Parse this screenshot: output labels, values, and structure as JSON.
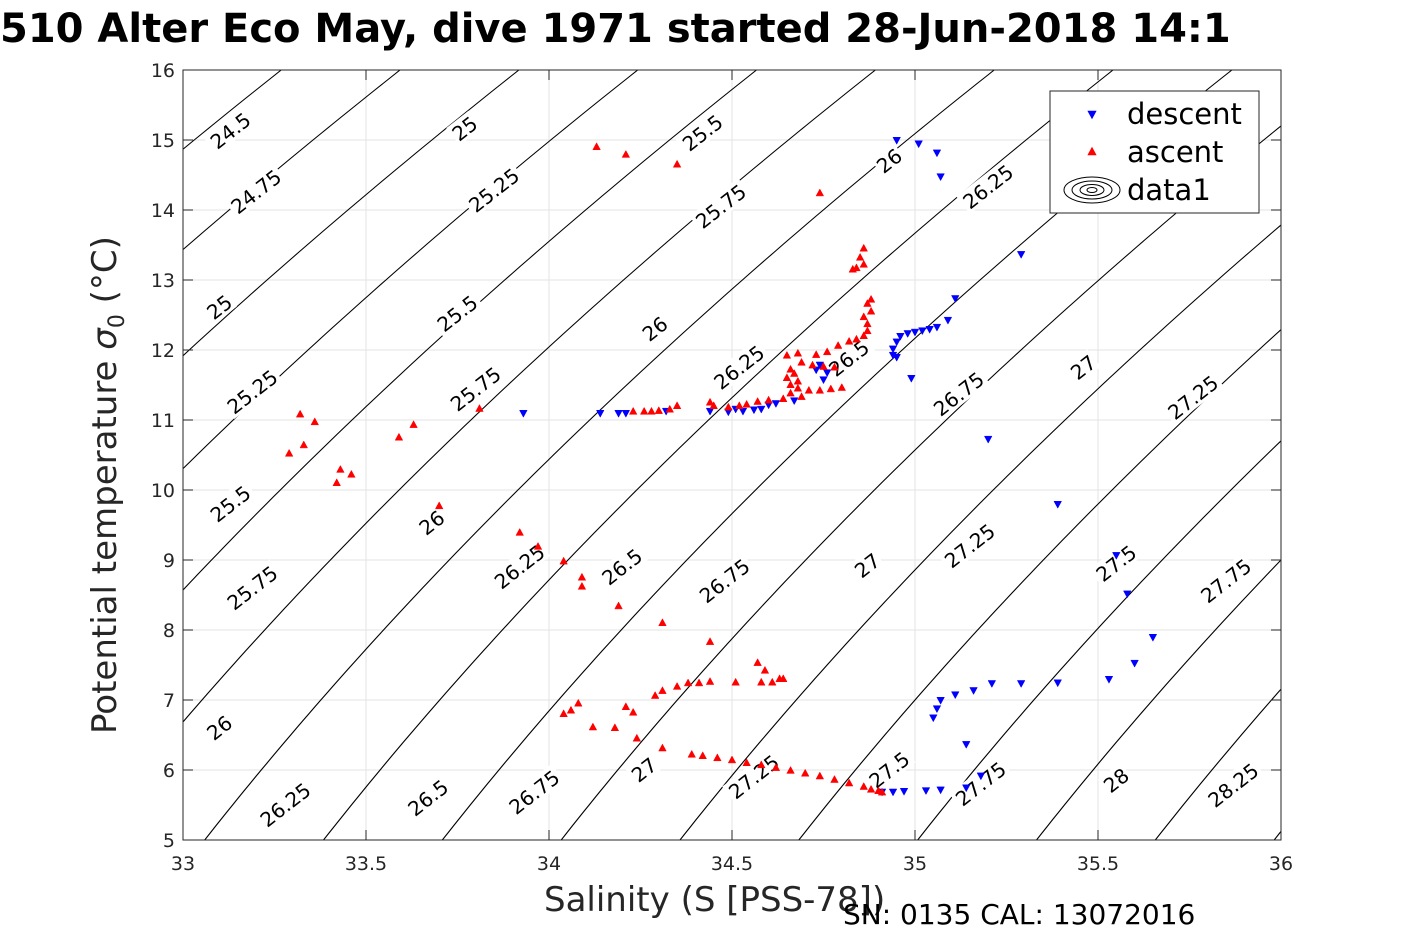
{
  "title": "510 Alter Eco May, dive 1971 started 28-Jun-2018 14:1",
  "footer": "SN: 0135  CAL: 13072016",
  "chart_data": {
    "type": "scatter",
    "xlabel": "Salinity (S [PSS-78])",
    "ylabel_text": "Potential temperature ",
    "ylabel_symbol": "σ",
    "ylabel_sub": "0",
    "ylabel_unit": " (°C)",
    "xlim": [
      33,
      36
    ],
    "ylim": [
      5,
      16
    ],
    "xticks": [
      33,
      33.5,
      34,
      34.5,
      35,
      35.5,
      36
    ],
    "xtick_labels": [
      "33",
      "33.5",
      "34",
      "34.5",
      "35",
      "35.5",
      "36"
    ],
    "yticks": [
      5,
      6,
      7,
      8,
      9,
      10,
      11,
      12,
      13,
      14,
      15,
      16
    ],
    "ytick_labels": [
      "5",
      "6",
      "7",
      "8",
      "9",
      "10",
      "11",
      "12",
      "13",
      "14",
      "15",
      "16"
    ],
    "grid": true,
    "legend_position": "top-right",
    "legend": [
      {
        "name": "descent",
        "marker": "triangle-down",
        "color": "#0000ff"
      },
      {
        "name": "ascent",
        "marker": "triangle-up",
        "color": "#ff0000"
      },
      {
        "name": "data1",
        "marker": "contour",
        "color": "#000000"
      }
    ],
    "contour_levels": [
      24.5,
      24.75,
      25,
      25.25,
      25.5,
      25.75,
      26,
      26.25,
      26.5,
      26.75,
      27,
      27.25,
      27.5,
      27.75,
      28,
      28.25
    ],
    "contour_labels": [
      {
        "text": "24.5",
        "s": 33.13,
        "t": 15.13
      },
      {
        "text": "24.75",
        "s": 33.2,
        "t": 14.26
      },
      {
        "text": "25",
        "s": 33.1,
        "t": 12.61
      },
      {
        "text": "25.25",
        "s": 33.19,
        "t": 11.4
      },
      {
        "text": "25.5",
        "s": 33.13,
        "t": 9.8
      },
      {
        "text": "25.75",
        "s": 33.19,
        "t": 8.6
      },
      {
        "text": "26",
        "s": 33.1,
        "t": 6.6
      },
      {
        "text": "26.25",
        "s": 33.28,
        "t": 5.5
      },
      {
        "text": "25",
        "s": 33.77,
        "t": 15.16
      },
      {
        "text": "25.25",
        "s": 33.85,
        "t": 14.28
      },
      {
        "text": "25.5",
        "s": 33.75,
        "t": 12.52
      },
      {
        "text": "25.75",
        "s": 33.8,
        "t": 11.44
      },
      {
        "text": "26",
        "s": 33.68,
        "t": 9.53
      },
      {
        "text": "26.25",
        "s": 33.92,
        "t": 8.9
      },
      {
        "text": "26.5",
        "s": 33.67,
        "t": 5.6
      },
      {
        "text": "26.5",
        "s": 34.2,
        "t": 8.9
      },
      {
        "text": "26.75",
        "s": 33.96,
        "t": 5.68
      },
      {
        "text": "25.5",
        "s": 34.42,
        "t": 15.1
      },
      {
        "text": "25.75",
        "s": 34.47,
        "t": 14.05
      },
      {
        "text": "26",
        "s": 34.29,
        "t": 12.3
      },
      {
        "text": "26.25",
        "s": 34.52,
        "t": 11.75
      },
      {
        "text": "26.75",
        "s": 34.48,
        "t": 8.7
      },
      {
        "text": "27",
        "s": 34.26,
        "t": 6.0
      },
      {
        "text": "27",
        "s": 34.87,
        "t": 8.92
      },
      {
        "text": "27.25",
        "s": 34.56,
        "t": 5.9
      },
      {
        "text": "26",
        "s": 34.93,
        "t": 14.7
      },
      {
        "text": "26.5",
        "s": 34.82,
        "t": 11.88
      },
      {
        "text": "26.25",
        "s": 35.2,
        "t": 14.33
      },
      {
        "text": "26.75",
        "s": 35.12,
        "t": 11.37
      },
      {
        "text": "27.25",
        "s": 35.15,
        "t": 9.2
      },
      {
        "text": "27.5",
        "s": 34.93,
        "t": 6.0
      },
      {
        "text": "27.75",
        "s": 35.18,
        "t": 5.8
      },
      {
        "text": "27",
        "s": 35.46,
        "t": 11.75
      },
      {
        "text": "27.25",
        "s": 35.76,
        "t": 11.32
      },
      {
        "text": "27.5",
        "s": 35.55,
        "t": 8.95
      },
      {
        "text": "27.75",
        "s": 35.85,
        "t": 8.7
      },
      {
        "text": "28",
        "s": 35.55,
        "t": 5.85
      },
      {
        "text": "28.25",
        "s": 35.87,
        "t": 5.78
      }
    ],
    "series": [
      {
        "name": "descent",
        "marker": "triangle-down",
        "color": "#0000ff",
        "points": [
          [
            34.95,
            15.0
          ],
          [
            35.01,
            14.95
          ],
          [
            35.06,
            14.82
          ],
          [
            35.07,
            14.48
          ],
          [
            35.29,
            13.37
          ],
          [
            35.11,
            12.74
          ],
          [
            35.09,
            12.43
          ],
          [
            35.06,
            12.33
          ],
          [
            35.04,
            12.3
          ],
          [
            35.02,
            12.28
          ],
          [
            35.0,
            12.26
          ],
          [
            34.98,
            12.24
          ],
          [
            34.96,
            12.2
          ],
          [
            34.95,
            12.12
          ],
          [
            34.94,
            12.02
          ],
          [
            34.94,
            11.93
          ],
          [
            34.95,
            11.9
          ],
          [
            34.99,
            11.6
          ],
          [
            35.2,
            10.73
          ],
          [
            35.39,
            9.8
          ],
          [
            35.55,
            9.07
          ],
          [
            35.58,
            8.52
          ],
          [
            35.65,
            7.9
          ],
          [
            35.6,
            7.53
          ],
          [
            35.53,
            7.3
          ],
          [
            35.39,
            7.25
          ],
          [
            35.29,
            7.24
          ],
          [
            35.21,
            7.24
          ],
          [
            35.16,
            7.14
          ],
          [
            35.11,
            7.08
          ],
          [
            35.07,
            7.0
          ],
          [
            35.06,
            6.88
          ],
          [
            35.05,
            6.75
          ],
          [
            35.14,
            6.37
          ],
          [
            35.18,
            5.92
          ],
          [
            35.14,
            5.75
          ],
          [
            35.07,
            5.72
          ],
          [
            35.03,
            5.71
          ],
          [
            34.97,
            5.7
          ],
          [
            34.94,
            5.69
          ],
          [
            34.91,
            5.69
          ],
          [
            34.74,
            11.79
          ],
          [
            34.73,
            11.72
          ],
          [
            34.76,
            11.68
          ],
          [
            34.75,
            11.58
          ],
          [
            33.93,
            11.1
          ],
          [
            34.14,
            11.1
          ],
          [
            34.19,
            11.1
          ],
          [
            34.21,
            11.1
          ],
          [
            34.32,
            11.13
          ],
          [
            34.44,
            11.13
          ],
          [
            34.49,
            11.12
          ],
          [
            34.51,
            11.16
          ],
          [
            34.53,
            11.13
          ],
          [
            34.56,
            11.15
          ],
          [
            34.58,
            11.16
          ],
          [
            34.6,
            11.22
          ],
          [
            34.62,
            11.24
          ],
          [
            34.67,
            11.28
          ]
        ]
      },
      {
        "name": "ascent",
        "marker": "triangle-up",
        "color": "#ff0000",
        "points": [
          [
            34.13,
            14.9
          ],
          [
            34.21,
            14.79
          ],
          [
            34.35,
            14.65
          ],
          [
            34.74,
            14.24
          ],
          [
            34.86,
            13.45
          ],
          [
            34.85,
            13.32
          ],
          [
            34.86,
            13.22
          ],
          [
            34.84,
            13.17
          ],
          [
            34.83,
            13.15
          ],
          [
            34.88,
            12.72
          ],
          [
            34.87,
            12.66
          ],
          [
            34.88,
            12.55
          ],
          [
            34.86,
            12.47
          ],
          [
            34.87,
            12.37
          ],
          [
            34.87,
            12.27
          ],
          [
            34.86,
            12.2
          ],
          [
            34.84,
            12.15
          ],
          [
            34.82,
            12.12
          ],
          [
            34.79,
            12.06
          ],
          [
            34.76,
            11.97
          ],
          [
            34.73,
            11.93
          ],
          [
            34.68,
            11.95
          ],
          [
            34.65,
            11.92
          ],
          [
            34.69,
            11.82
          ],
          [
            34.72,
            11.78
          ],
          [
            34.75,
            11.76
          ],
          [
            34.78,
            11.75
          ],
          [
            34.66,
            11.72
          ],
          [
            34.67,
            11.66
          ],
          [
            34.65,
            11.6
          ],
          [
            34.68,
            11.55
          ],
          [
            34.66,
            11.5
          ],
          [
            34.68,
            11.45
          ],
          [
            34.71,
            11.42
          ],
          [
            34.74,
            11.42
          ],
          [
            34.77,
            11.44
          ],
          [
            34.8,
            11.46
          ],
          [
            34.66,
            11.38
          ],
          [
            34.69,
            11.33
          ],
          [
            34.64,
            11.3
          ],
          [
            34.6,
            11.28
          ],
          [
            34.57,
            11.26
          ],
          [
            34.54,
            11.22
          ],
          [
            34.52,
            11.2
          ],
          [
            34.49,
            11.18
          ],
          [
            34.45,
            11.2
          ],
          [
            34.44,
            11.25
          ],
          [
            34.35,
            11.2
          ],
          [
            34.33,
            11.15
          ],
          [
            34.3,
            11.13
          ],
          [
            34.28,
            11.12
          ],
          [
            34.26,
            11.12
          ],
          [
            34.23,
            11.12
          ],
          [
            33.81,
            11.16
          ],
          [
            33.63,
            10.93
          ],
          [
            33.59,
            10.75
          ],
          [
            33.32,
            11.08
          ],
          [
            33.36,
            10.97
          ],
          [
            33.33,
            10.64
          ],
          [
            33.29,
            10.52
          ],
          [
            33.43,
            10.29
          ],
          [
            33.46,
            10.22
          ],
          [
            33.42,
            10.1
          ],
          [
            33.7,
            9.77
          ],
          [
            33.92,
            9.39
          ],
          [
            33.97,
            9.19
          ],
          [
            34.04,
            8.98
          ],
          [
            34.09,
            8.75
          ],
          [
            34.09,
            8.62
          ],
          [
            34.19,
            8.34
          ],
          [
            34.31,
            8.1
          ],
          [
            34.44,
            7.83
          ],
          [
            34.57,
            7.53
          ],
          [
            34.59,
            7.42
          ],
          [
            34.63,
            7.3
          ],
          [
            34.64,
            7.3
          ],
          [
            34.61,
            7.25
          ],
          [
            34.58,
            7.25
          ],
          [
            34.51,
            7.25
          ],
          [
            34.44,
            7.26
          ],
          [
            34.41,
            7.24
          ],
          [
            34.38,
            7.24
          ],
          [
            34.35,
            7.19
          ],
          [
            34.31,
            7.13
          ],
          [
            34.29,
            7.06
          ],
          [
            34.21,
            6.9
          ],
          [
            34.23,
            6.82
          ],
          [
            34.08,
            6.95
          ],
          [
            34.06,
            6.85
          ],
          [
            34.04,
            6.8
          ],
          [
            34.12,
            6.61
          ],
          [
            34.18,
            6.6
          ],
          [
            34.24,
            6.45
          ],
          [
            34.31,
            6.31
          ],
          [
            34.39,
            6.22
          ],
          [
            34.42,
            6.2
          ],
          [
            34.46,
            6.17
          ],
          [
            34.5,
            6.14
          ],
          [
            34.54,
            6.1
          ],
          [
            34.58,
            6.07
          ],
          [
            34.62,
            6.03
          ],
          [
            34.66,
            5.99
          ],
          [
            34.7,
            5.95
          ],
          [
            34.74,
            5.91
          ],
          [
            34.78,
            5.86
          ],
          [
            34.82,
            5.81
          ],
          [
            34.86,
            5.76
          ],
          [
            34.88,
            5.72
          ],
          [
            34.9,
            5.7
          ],
          [
            34.91,
            5.68
          ]
        ]
      }
    ]
  }
}
